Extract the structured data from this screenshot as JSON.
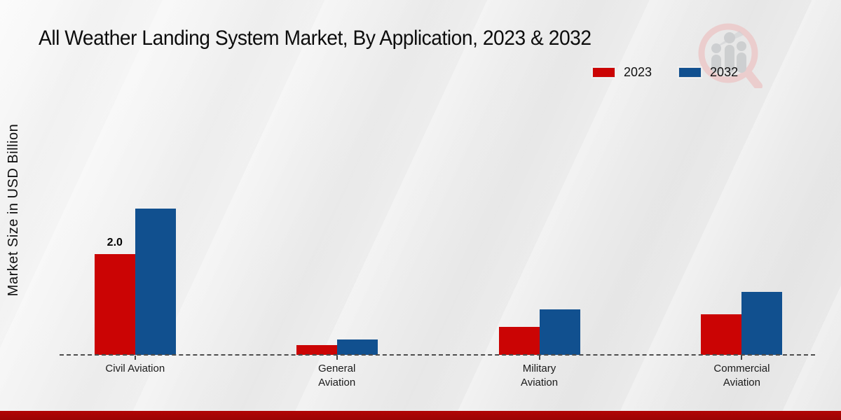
{
  "title": "All Weather Landing System Market, By Application, 2023 & 2032",
  "y_axis_label": "Market Size in USD Billion",
  "watermark_icon": "magnifier-bar-chart-logo",
  "footer": {
    "bar_color": "#b10505"
  },
  "chart_data": {
    "type": "bar",
    "title": "All Weather Landing System Market, By Application, 2023 & 2032",
    "xlabel": "",
    "ylabel": "Market Size in USD Billion",
    "categories": [
      "Civil Aviation",
      "General Aviation",
      "Military Aviation",
      "Commercial Aviation"
    ],
    "series": [
      {
        "name": "2023",
        "color": "#cb0404",
        "values": [
          2.0,
          0.2,
          0.55,
          0.8
        ],
        "labels": [
          "2.0",
          null,
          null,
          null
        ]
      },
      {
        "name": "2032",
        "color": "#11508f",
        "values": [
          2.9,
          0.3,
          0.9,
          1.25
        ],
        "labels": [
          null,
          null,
          null,
          null
        ]
      }
    ],
    "ylim": [
      0,
      3.5
    ],
    "grid": false,
    "y_ticks_visible": false,
    "baseline_style": "dashed",
    "legend_position": "top-right"
  }
}
